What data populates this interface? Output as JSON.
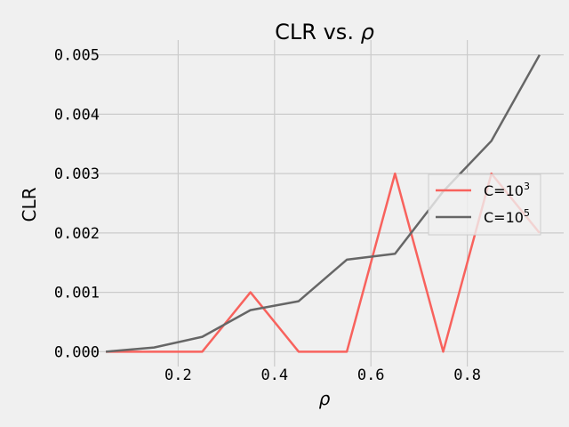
{
  "chart_data": {
    "type": "line",
    "title": "CLR vs. ",
    "title_symbol": "ρ",
    "xlabel": "ρ",
    "ylabel": "CLR",
    "xlim": [
      0.0,
      1.0
    ],
    "ylim": [
      -0.00025,
      0.00525
    ],
    "xticks": [
      0.2,
      0.4,
      0.6,
      0.8
    ],
    "xtick_labels": [
      "0.2",
      "0.4",
      "0.6",
      "0.8"
    ],
    "yticks": [
      0.0,
      0.001,
      0.002,
      0.003,
      0.004,
      0.005
    ],
    "ytick_labels": [
      "0.000",
      "0.001",
      "0.002",
      "0.003",
      "0.004",
      "0.005"
    ],
    "grid": true,
    "legend_position": "center-right",
    "x": [
      0.05,
      0.15,
      0.25,
      0.35,
      0.45,
      0.55,
      0.65,
      0.75,
      0.85,
      0.95
    ],
    "series": [
      {
        "name": "C=10",
        "exponent": "3",
        "color": "#f8625d",
        "values": [
          0.0,
          0.0,
          0.0,
          0.001,
          0.0,
          0.0,
          0.003,
          0.0,
          0.003,
          0.002
        ]
      },
      {
        "name": "C=10",
        "exponent": "5",
        "color": "#666666",
        "values": [
          0.0,
          7e-05,
          0.00025,
          0.0007,
          0.00085,
          0.00155,
          0.00165,
          0.0027,
          0.00355,
          0.005
        ]
      }
    ]
  }
}
